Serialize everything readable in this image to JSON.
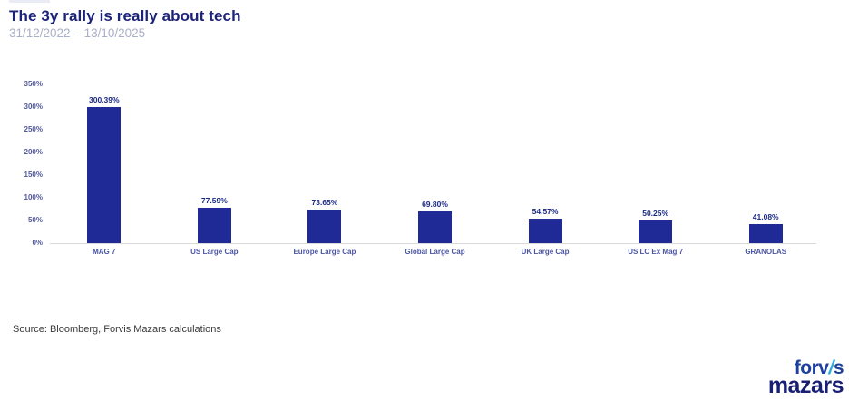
{
  "page": {
    "title": "The 3y rally is really about tech",
    "subtitle": "31/12/2022 – 13/10/2025",
    "source": "Source: Bloomberg, Forvis Mazars calculations"
  },
  "logo": {
    "line1_part1": "forv",
    "line1_slash": "/",
    "line1_part2": "s",
    "line2": "mazars",
    "navy_color": "#191f73",
    "cyan_color": "#2baae2"
  },
  "chart_data": {
    "type": "bar",
    "title": "The 3y rally is really about tech",
    "subtitle": "31/12/2022 – 13/10/2025",
    "categories": [
      "MAG 7",
      "US Large Cap",
      "Europe Large Cap",
      "Global Large Cap",
      "UK Large Cap",
      "US LC Ex Mag 7",
      "GRANOLAS"
    ],
    "values": [
      300.39,
      77.59,
      73.65,
      69.8,
      54.57,
      50.25,
      41.08
    ],
    "data_labels": [
      "300.39%",
      "77.59%",
      "73.65%",
      "69.80%",
      "54.57%",
      "50.25%",
      "41.08%"
    ],
    "xlabel": "",
    "ylabel": "",
    "ylim": [
      0,
      350
    ],
    "ytick_step": 50,
    "ytick_labels": [
      "0%",
      "50%",
      "100%",
      "150%",
      "200%",
      "250%",
      "300%",
      "350%"
    ],
    "grid": false,
    "legend": false,
    "bar_color": "#1f2a96",
    "data_label_color": "#1b2a85",
    "axis_tick_color": "#51579d",
    "category_label_color": "#4b55a3",
    "title_color": "#1b2478",
    "subtitle_color": "#a9b0c7"
  }
}
